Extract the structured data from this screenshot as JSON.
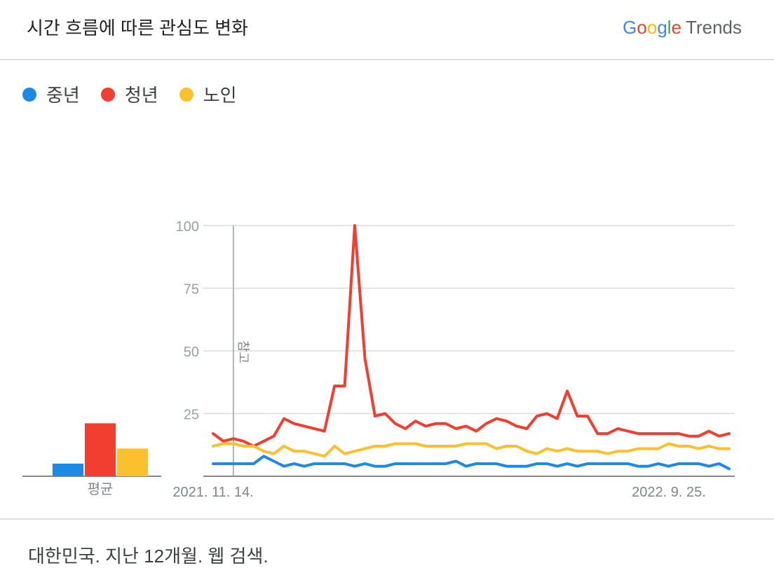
{
  "header": {
    "title": "시간 흐름에 따른 관심도 변화",
    "brand_google": [
      "G",
      "o",
      "o",
      "g",
      "l",
      "e"
    ],
    "brand_trends": "Trends"
  },
  "legend": [
    {
      "name": "중년",
      "color": "#1e88e5"
    },
    {
      "name": "청년",
      "color": "#f23d31"
    },
    {
      "name": "노인",
      "color": "#fbc02d"
    }
  ],
  "footer": {
    "text": "대한민국. 지난 12개월. 웹 검색."
  },
  "chart_data": [
    {
      "type": "bar",
      "title": "",
      "categories": [
        "평균"
      ],
      "series": [
        {
          "name": "중년",
          "color": "#1e88e5",
          "values": [
            5
          ]
        },
        {
          "name": "청년",
          "color": "#f23d31",
          "values": [
            21
          ]
        },
        {
          "name": "노인",
          "color": "#fbc02d",
          "values": [
            11
          ]
        }
      ],
      "xlabel": "평균"
    },
    {
      "type": "line",
      "title": "",
      "x_start": "2021. 11. 14.",
      "x_end_label": "2022. 9. 25.",
      "x_tick_labels": [
        "2021. 11. 14.",
        "2022. 9. 25."
      ],
      "x_tick_indices": [
        0,
        45
      ],
      "ylim": [
        0,
        100
      ],
      "y_ticks": [
        25,
        50,
        75,
        100
      ],
      "grid": true,
      "annotation": {
        "label": "참고",
        "index": 2
      },
      "series": [
        {
          "name": "청년",
          "color": "#f23d31",
          "values": [
            17,
            14,
            15,
            14,
            12,
            14,
            16,
            23,
            21,
            20,
            19,
            18,
            36,
            36,
            100,
            47,
            24,
            25,
            21,
            19,
            22,
            20,
            21,
            21,
            19,
            20,
            18,
            21,
            23,
            22,
            20,
            19,
            24,
            25,
            23,
            34,
            24,
            24,
            17,
            17,
            19,
            18,
            17,
            17,
            17,
            17,
            17,
            16,
            16,
            18,
            16,
            17
          ]
        },
        {
          "name": "노인",
          "color": "#fbc02d",
          "values": [
            12,
            13,
            13,
            12,
            12,
            10,
            9,
            12,
            10,
            10,
            9,
            8,
            12,
            9,
            10,
            11,
            12,
            12,
            13,
            13,
            13,
            12,
            12,
            12,
            12,
            13,
            13,
            13,
            11,
            12,
            12,
            10,
            9,
            11,
            10,
            11,
            10,
            10,
            10,
            9,
            10,
            10,
            11,
            11,
            11,
            13,
            12,
            12,
            11,
            12,
            11,
            11
          ]
        },
        {
          "name": "중년",
          "color": "#1e88e5",
          "values": [
            5,
            5,
            5,
            5,
            5,
            8,
            6,
            4,
            5,
            4,
            5,
            5,
            5,
            5,
            4,
            5,
            4,
            4,
            5,
            5,
            5,
            5,
            5,
            5,
            6,
            4,
            5,
            5,
            5,
            4,
            4,
            4,
            5,
            5,
            4,
            5,
            4,
            5,
            5,
            5,
            5,
            5,
            4,
            4,
            5,
            4,
            5,
            5,
            5,
            4,
            5,
            3
          ]
        }
      ]
    }
  ]
}
